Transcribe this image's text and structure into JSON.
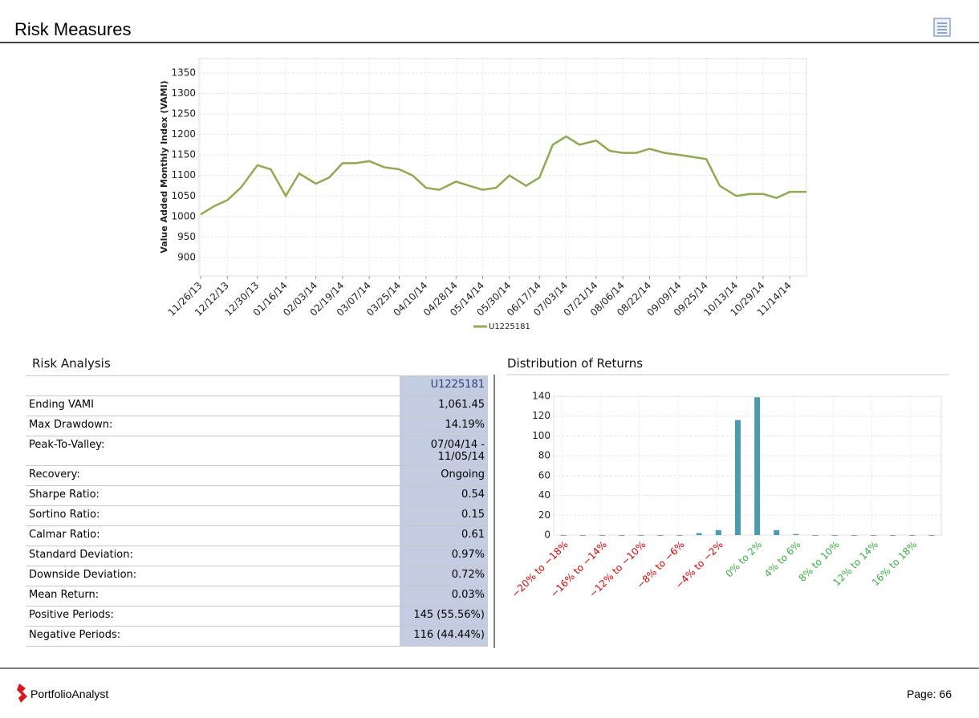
{
  "header": {
    "title": "Risk Measures"
  },
  "chart_data": [
    {
      "type": "line",
      "y_label": "Value Added Monthly Index (VAMI)",
      "x": [
        "11/26/13",
        "12/04/13",
        "12/12/13",
        "12/20/13",
        "12/30/13",
        "01/07/14",
        "01/16/14",
        "01/24/14",
        "02/03/14",
        "02/11/14",
        "02/19/14",
        "02/27/14",
        "03/07/14",
        "03/16/14",
        "03/25/14",
        "04/02/14",
        "04/10/14",
        "04/18/14",
        "04/28/14",
        "05/06/14",
        "05/14/14",
        "05/22/14",
        "05/30/14",
        "06/09/14",
        "06/17/14",
        "06/25/14",
        "07/03/14",
        "07/11/14",
        "07/21/14",
        "07/29/14",
        "08/06/14",
        "08/14/14",
        "08/22/14",
        "08/31/14",
        "09/09/14",
        "09/17/14",
        "09/25/14",
        "10/03/14",
        "10/13/14",
        "10/21/14",
        "10/29/14",
        "11/06/14",
        "11/14/14",
        "11/24/14"
      ],
      "series": [
        {
          "name": "U1225181",
          "color": "#8faa4f",
          "values": [
            1005,
            1025,
            1040,
            1070,
            1125,
            1115,
            1050,
            1105,
            1080,
            1095,
            1130,
            1130,
            1135,
            1120,
            1115,
            1100,
            1070,
            1065,
            1085,
            1075,
            1065,
            1070,
            1100,
            1075,
            1095,
            1175,
            1195,
            1175,
            1185,
            1160,
            1155,
            1155,
            1165,
            1155,
            1150,
            1145,
            1140,
            1075,
            1050,
            1055,
            1055,
            1045,
            1060,
            1060
          ]
        }
      ],
      "xlim": [
        "11/25/13",
        "11/24/14"
      ],
      "xticks": [
        "11/26/13",
        "12/12/13",
        "12/30/13",
        "01/16/14",
        "02/03/14",
        "02/19/14",
        "03/07/14",
        "03/25/14",
        "04/10/14",
        "04/28/14",
        "05/14/14",
        "05/30/14",
        "06/17/14",
        "07/03/14",
        "07/21/14",
        "08/06/14",
        "08/22/14",
        "09/09/14",
        "09/25/14",
        "10/13/14",
        "10/29/14",
        "11/14/14"
      ],
      "ylim": [
        855,
        1385
      ],
      "yticks": [
        900,
        950,
        1000,
        1050,
        1100,
        1150,
        1200,
        1250,
        1300,
        1350
      ],
      "grid": true
    },
    {
      "type": "bar",
      "title": "Distribution of Returns",
      "categories": [
        "−20% to −18%",
        null,
        "−16% to −14%",
        null,
        "−12% to −10%",
        null,
        "−8% to −6%",
        null,
        "−4% to −2%",
        null,
        "0% to 2%",
        null,
        "4% to 6%",
        null,
        "8% to 10%",
        null,
        "12% to 14%",
        null,
        "16% to 18%",
        null
      ],
      "label_colors": [
        "#e00000",
        null,
        "#e00000",
        null,
        "#e00000",
        null,
        "#e00000",
        null,
        "#e00000",
        null,
        "#3cb043",
        null,
        "#3cb043",
        null,
        "#3cb043",
        null,
        "#3cb043",
        null,
        "#3cb043",
        null
      ],
      "values": [
        0,
        0,
        0,
        0,
        0,
        0,
        0,
        2,
        5,
        116,
        139,
        5,
        1,
        0,
        0,
        0,
        0,
        0,
        0,
        0
      ],
      "color": "#4a9bb0",
      "ylim": [
        0,
        140
      ],
      "yticks": [
        0,
        20,
        40,
        60,
        80,
        100,
        120,
        140
      ],
      "grid": true
    }
  ],
  "risk_analysis": {
    "title": "Risk Analysis",
    "column_header": "U1225181",
    "rows": [
      [
        "Ending VAMI",
        "1,061.45"
      ],
      [
        "Max Drawdown:",
        "14.19%"
      ],
      [
        "Peak-To-Valley:",
        "07/04/14 - 11/05/14"
      ],
      [
        "Recovery:",
        "Ongoing"
      ],
      [
        "Sharpe Ratio:",
        "0.54"
      ],
      [
        "Sortino Ratio:",
        "0.15"
      ],
      [
        "Calmar Ratio:",
        "0.61"
      ],
      [
        "Standard Deviation:",
        "0.97%"
      ],
      [
        "Downside Deviation:",
        "0.72%"
      ],
      [
        "Mean Return:",
        "0.03%"
      ],
      [
        "Positive Periods:",
        "145 (55.56%)"
      ],
      [
        "Negative Periods:",
        "116 (44.44%)"
      ]
    ]
  },
  "footer": {
    "brand": "PortfolioAnalyst",
    "page": "Page: 66"
  }
}
